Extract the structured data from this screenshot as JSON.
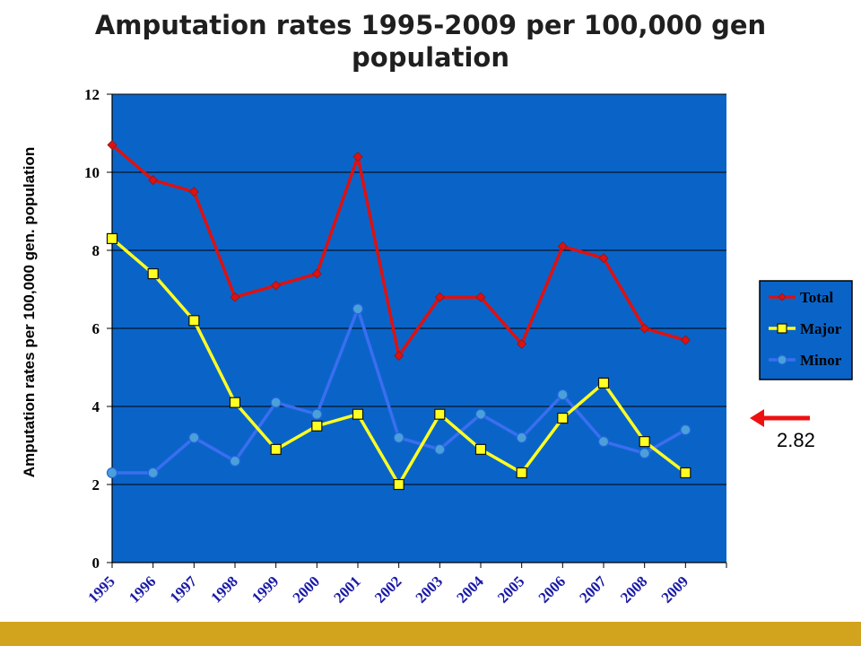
{
  "chart_data": {
    "type": "line",
    "title": "Amputation rates 1995-2009 per 100,000 gen population",
    "ylabel": "Amputation rates per 100,000 gen. population",
    "xlabel": "",
    "x": [
      "1995",
      "1996",
      "1997",
      "1998",
      "1999",
      "2000",
      "2001",
      "2002",
      "2003",
      "2004",
      "2005",
      "2006",
      "2007",
      "2008",
      "2009"
    ],
    "ylim": [
      0,
      12
    ],
    "yticks": [
      "0",
      "2",
      "4",
      "6",
      "8",
      "10",
      "12"
    ],
    "grid": true,
    "legend_position": "right",
    "series": [
      {
        "name": "Total",
        "color": "#dd1111",
        "marker": "diamond",
        "values": [
          10.7,
          9.8,
          9.5,
          6.8,
          7.1,
          7.4,
          10.4,
          5.3,
          6.8,
          6.8,
          5.6,
          8.1,
          7.8,
          6.0,
          5.7
        ]
      },
      {
        "name": "Major",
        "color": "#ffff22",
        "marker": "square",
        "values": [
          8.3,
          7.4,
          6.2,
          4.1,
          2.9,
          3.5,
          3.8,
          2.0,
          3.8,
          2.9,
          2.3,
          3.7,
          4.6,
          3.1,
          2.3
        ]
      },
      {
        "name": "Minor",
        "color": "#3a6ef0",
        "marker": "circle",
        "values": [
          2.3,
          2.3,
          3.2,
          2.6,
          4.1,
          3.8,
          6.5,
          3.2,
          2.9,
          3.8,
          3.2,
          4.3,
          3.1,
          2.8,
          3.4
        ]
      }
    ],
    "annotation": {
      "text": "2.82",
      "arrow": "pointing-left",
      "color": "#ee1111"
    }
  },
  "colors": {
    "plot_background": "#0a64c8",
    "footer_bar": "#d2a41e"
  }
}
